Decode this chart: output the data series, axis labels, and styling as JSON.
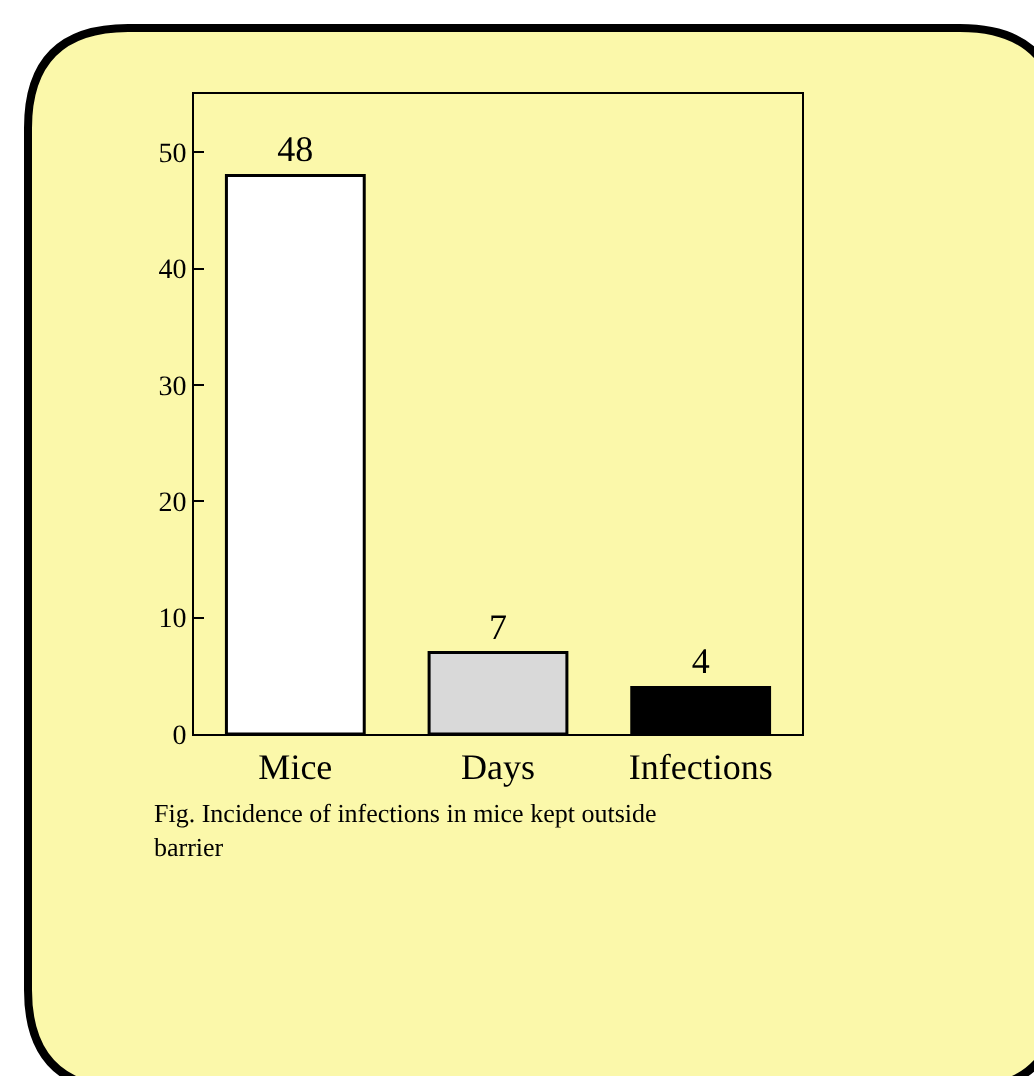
{
  "chart_data": {
    "type": "bar",
    "categories": [
      "Mice",
      "Days",
      "Infections"
    ],
    "values": [
      48,
      7,
      4
    ],
    "colors": [
      "#ffffff",
      "#d9d9d9",
      "#000000"
    ],
    "ylim": [
      0,
      55
    ],
    "yticks": [
      0,
      10,
      20,
      30,
      40,
      50
    ],
    "grid": false,
    "data_labels": true,
    "legend": false,
    "annotations": [
      "Fig. Incidence of infections in mice kept outside barrier"
    ]
  }
}
